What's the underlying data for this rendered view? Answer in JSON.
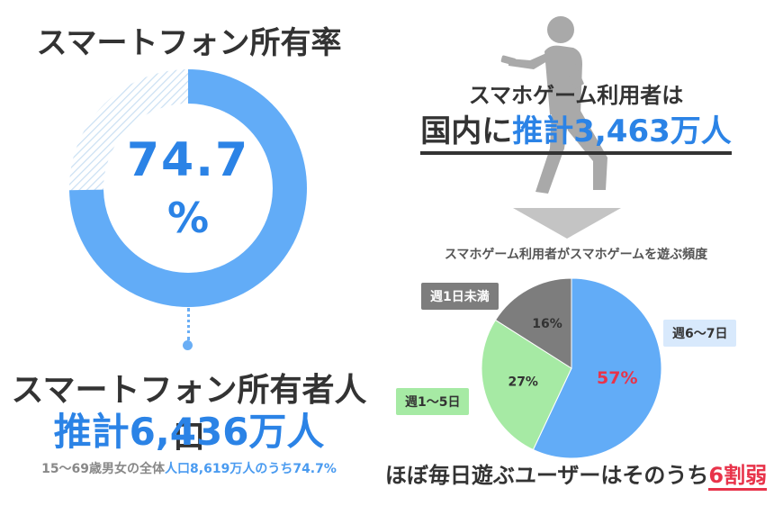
{
  "ownership": {
    "title": "スマートフォン所有率",
    "rate_number": "74.7",
    "rate_symbol": "%",
    "rate_fraction": 0.747,
    "owners_label": "スマートフォン所有者人口",
    "owners_value": "推計6,436万人",
    "footnote_prefix": "15～69歳男女の全体",
    "footnote_highlight": "人口8,619万人のうち74.7%"
  },
  "users": {
    "label": "スマホゲーム利用者は",
    "value_prefix": "国内に",
    "value_highlight": "推計3,463万人"
  },
  "frequency": {
    "title": "スマホゲーム利用者がスマホゲームを遊ぶ頻度",
    "tags": {
      "weekly_less_1": "週1日未満",
      "weekly_6_7": "週6～7日",
      "weekly_1_5": "週1～5日"
    },
    "summary_prefix": "ほぼ毎日遊ぶユーザーはそのうち",
    "summary_highlight": "6割弱"
  },
  "chart_data": {
    "type": "pie",
    "categories": [
      "週6～7日",
      "週1～5日",
      "週1日未満"
    ],
    "values": [
      57,
      27,
      16
    ],
    "labels": [
      "57%",
      "27%",
      "16%"
    ],
    "colors": [
      "#62acf7",
      "#a6eaa4",
      "#7d7d7d"
    ]
  },
  "colors": {
    "accent_blue": "#2b83e6",
    "donut_blue": "#62acf7",
    "highlight_red": "#e8334a",
    "text_dark": "#333333"
  }
}
